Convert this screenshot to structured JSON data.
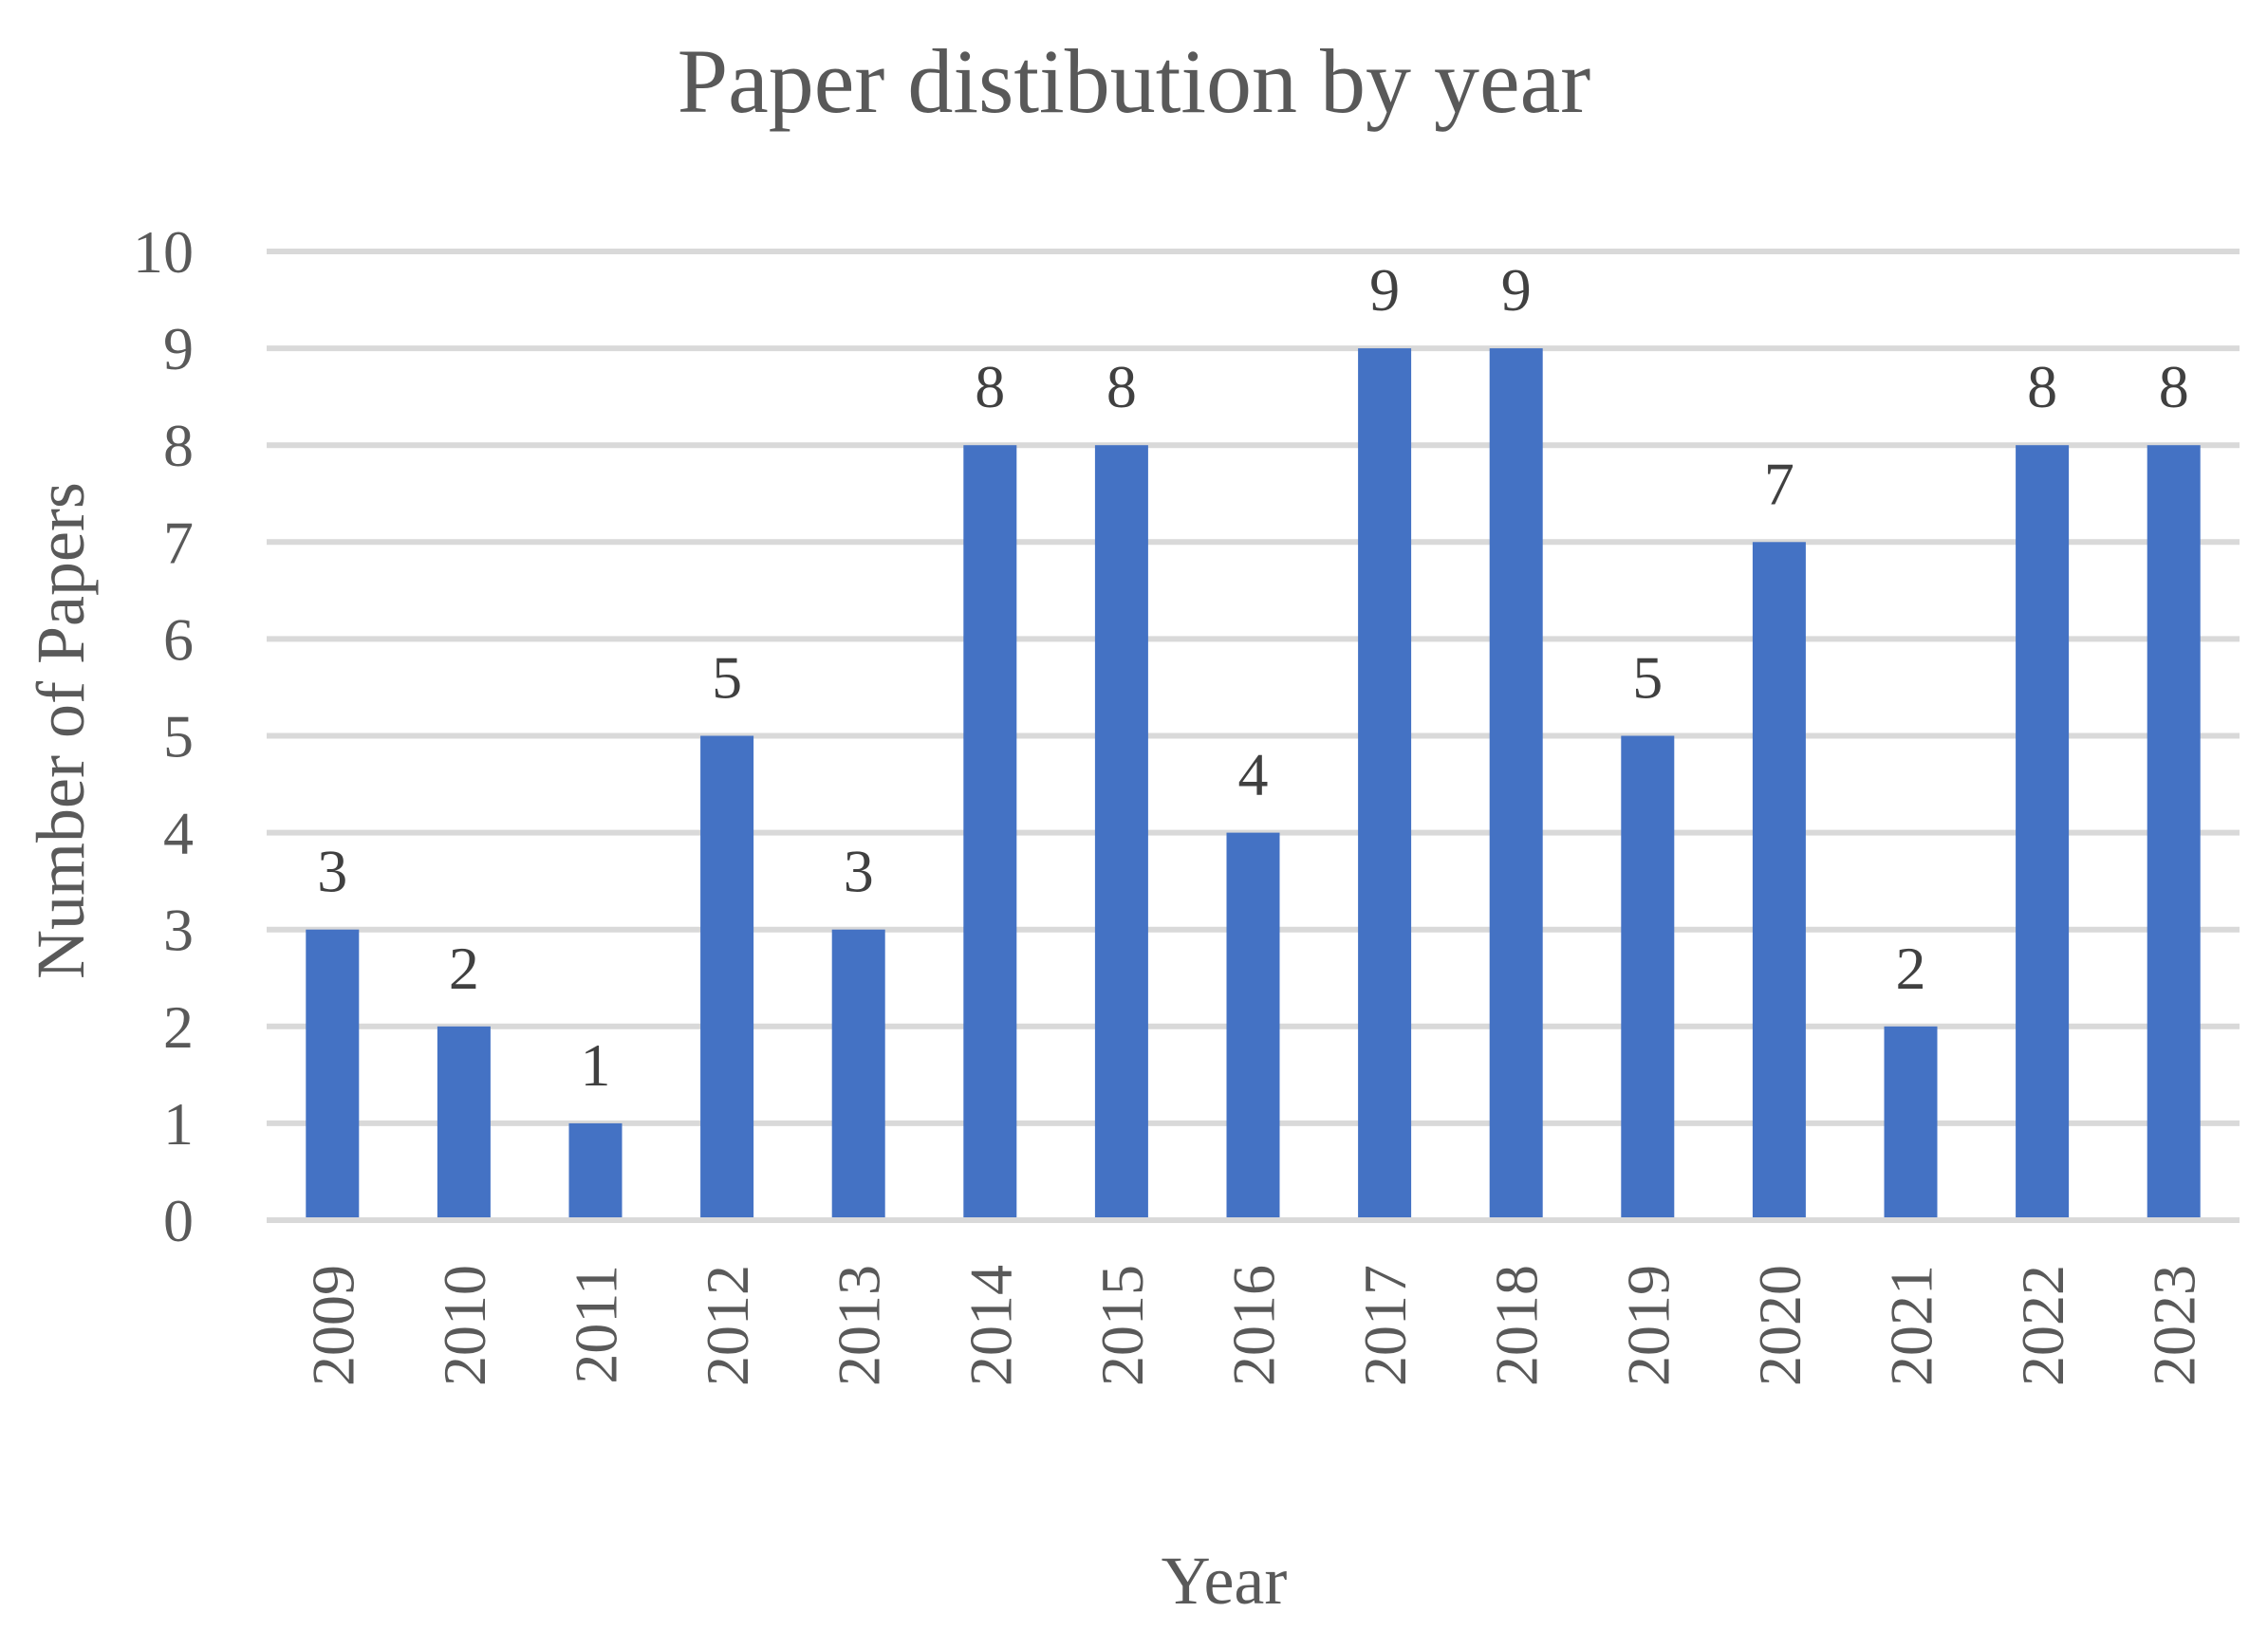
{
  "chart_data": {
    "type": "bar",
    "title": "Paper distibution by year",
    "xlabel": "Year",
    "ylabel": "Number of Papers",
    "categories": [
      "2009",
      "2010",
      "2011",
      "2012",
      "2013",
      "2014",
      "2015",
      "2016",
      "2017",
      "2018",
      "2019",
      "2020",
      "2021",
      "2022",
      "2023"
    ],
    "values": [
      3,
      2,
      1,
      5,
      3,
      8,
      8,
      4,
      9,
      9,
      5,
      7,
      2,
      8,
      8
    ],
    "ylim": [
      0,
      10
    ],
    "yticks": [
      0,
      1,
      2,
      3,
      4,
      5,
      6,
      7,
      8,
      9,
      10
    ],
    "grid": true,
    "data_labels": true,
    "legend": "none",
    "bar_color": "#4472C4"
  }
}
